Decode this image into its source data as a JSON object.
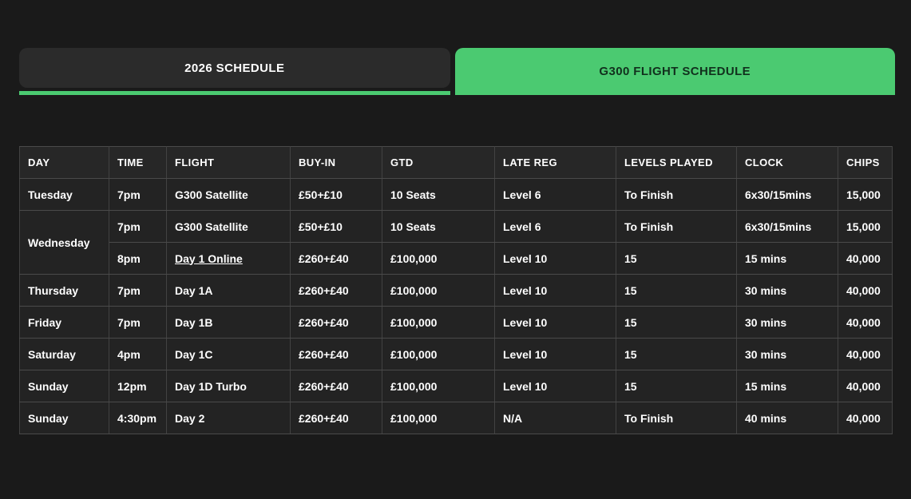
{
  "colors": {
    "accent_green": "#4bca71",
    "page_background": "#1a1a1a",
    "inactive_tab_background": "#2b2b2b"
  },
  "tabs": [
    {
      "label": "2026 SCHEDULE",
      "active": false
    },
    {
      "label": "G300 FLIGHT SCHEDULE",
      "active": true
    }
  ],
  "table": {
    "columns": [
      "DAY",
      "TIME",
      "FLIGHT",
      "BUY-IN",
      "GTD",
      "LATE REG",
      "LEVELS PLAYED",
      "CLOCK",
      "CHIPS"
    ],
    "rows": [
      {
        "day": "Tuesday",
        "day_rowspan": 1,
        "time": "7pm",
        "flight": "G300 Satellite",
        "flight_link": false,
        "buy_in": "£50+£10",
        "gtd": "10 Seats",
        "late_reg": "Level 6",
        "levels_played": "To Finish",
        "clock": "6x30/15mins",
        "chips": "15,000"
      },
      {
        "day": "Wednesday",
        "day_rowspan": 2,
        "time": "7pm",
        "flight": "G300 Satellite",
        "flight_link": false,
        "buy_in": "£50+£10",
        "gtd": "10 Seats",
        "late_reg": "Level 6",
        "levels_played": "To Finish",
        "clock": "6x30/15mins",
        "chips": "15,000"
      },
      {
        "day": null,
        "day_rowspan": 0,
        "time": "8pm",
        "flight": "Day 1 Online",
        "flight_link": true,
        "buy_in": "£260+£40",
        "gtd": "£100,000",
        "late_reg": "Level 10",
        "levels_played": "15",
        "clock": "15 mins",
        "chips": "40,000"
      },
      {
        "day": "Thursday",
        "day_rowspan": 1,
        "time": "7pm",
        "flight": "Day 1A",
        "flight_link": false,
        "buy_in": "£260+£40",
        "gtd": "£100,000",
        "late_reg": "Level 10",
        "levels_played": "15",
        "clock": "30 mins",
        "chips": "40,000"
      },
      {
        "day": "Friday",
        "day_rowspan": 1,
        "time": "7pm",
        "flight": "Day 1B",
        "flight_link": false,
        "buy_in": "£260+£40",
        "gtd": "£100,000",
        "late_reg": "Level 10",
        "levels_played": "15",
        "clock": "30 mins",
        "chips": "40,000"
      },
      {
        "day": "Saturday",
        "day_rowspan": 1,
        "time": "4pm",
        "flight": "Day 1C",
        "flight_link": false,
        "buy_in": "£260+£40",
        "gtd": "£100,000",
        "late_reg": "Level 10",
        "levels_played": "15",
        "clock": "30 mins",
        "chips": "40,000"
      },
      {
        "day": "Sunday",
        "day_rowspan": 1,
        "time": "12pm",
        "flight": "Day 1D Turbo",
        "flight_link": false,
        "buy_in": "£260+£40",
        "gtd": "£100,000",
        "late_reg": "Level 10",
        "levels_played": "15",
        "clock": "15 mins",
        "chips": "40,000"
      },
      {
        "day": "Sunday",
        "day_rowspan": 1,
        "time": "4:30pm",
        "flight": "Day 2",
        "flight_link": false,
        "buy_in": "£260+£40",
        "gtd": "£100,000",
        "late_reg": "N/A",
        "levels_played": "To Finish",
        "clock": "40 mins",
        "chips": "40,000"
      }
    ]
  }
}
